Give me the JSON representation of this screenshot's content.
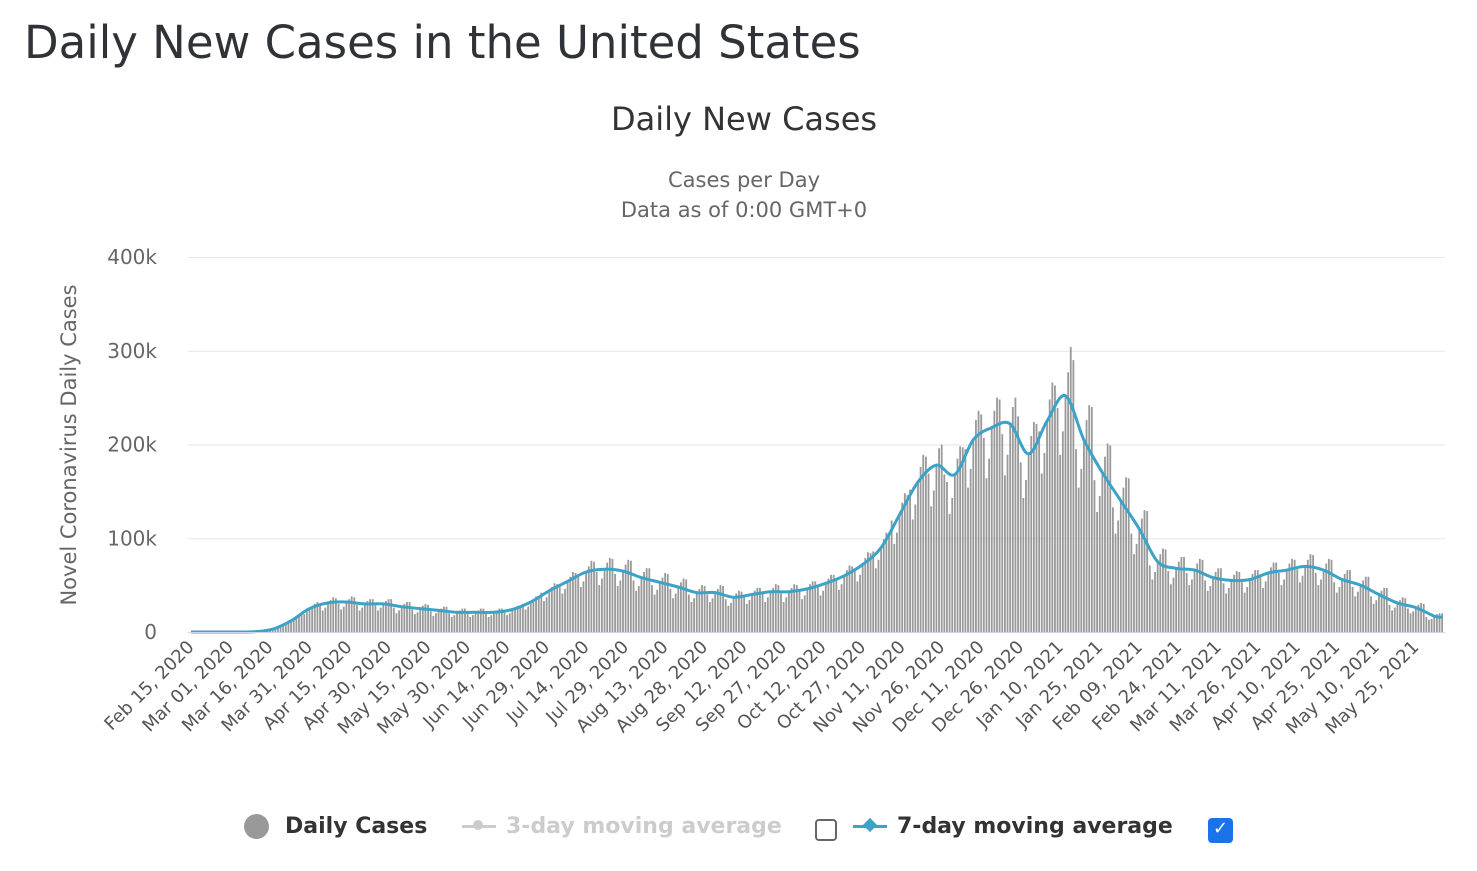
{
  "page_title": "Daily New Cases in the United States",
  "chart_data": {
    "type": "bar",
    "title": "Daily New Cases",
    "subtitle": [
      "Cases per Day",
      "Data as of 0:00 GMT+0"
    ],
    "ylabel": "Novel Coronavirus Daily Cases",
    "xlabel": "",
    "ylim": [
      0,
      400000
    ],
    "y_ticks": [
      {
        "value": 0,
        "label": "0"
      },
      {
        "value": 100000,
        "label": "100k"
      },
      {
        "value": 200000,
        "label": "200k"
      },
      {
        "value": 300000,
        "label": "300k"
      },
      {
        "value": 400000,
        "label": "400k"
      }
    ],
    "grid": true,
    "legend_placement": "bottom",
    "x_range": [
      "2020-02-15",
      "2021-06-04"
    ],
    "x_tick_labels": [
      "Feb 15, 2020",
      "Mar 01, 2020",
      "Mar 16, 2020",
      "Mar 31, 2020",
      "Apr 15, 2020",
      "Apr 30, 2020",
      "May 15, 2020",
      "May 30, 2020",
      "Jun 14, 2020",
      "Jun 29, 2020",
      "Jul 14, 2020",
      "Jul 29, 2020",
      "Aug 13, 2020",
      "Aug 28, 2020",
      "Sep 12, 2020",
      "Sep 27, 2020",
      "Oct 12, 2020",
      "Oct 27, 2020",
      "Nov 11, 2020",
      "Nov 26, 2020",
      "Dec 11, 2020",
      "Dec 26, 2020",
      "Jan 10, 2021",
      "Jan 25, 2021",
      "Feb 09, 2021",
      "Feb 24, 2021",
      "Mar 11, 2021",
      "Mar 26, 2021",
      "Apr 10, 2021",
      "Apr 25, 2021",
      "May 10, 2021",
      "May 25, 2021"
    ],
    "series": [
      {
        "name": "Daily Cases",
        "type": "bar",
        "color": "#999999",
        "visible": true,
        "start_date": "2020-02-15",
        "values": [
          0,
          0,
          0,
          0,
          0,
          0,
          0,
          0,
          0,
          0,
          0,
          0,
          0,
          0,
          0,
          0,
          0,
          0,
          0,
          0,
          0,
          200,
          200,
          300,
          300,
          400,
          400,
          500,
          1000,
          1500,
          2000,
          2500,
          3500,
          4500,
          5500,
          7000,
          8000,
          9500,
          11000,
          13000,
          17000,
          19000,
          20000,
          19000,
          22000,
          25000,
          27000,
          30000,
          32000,
          29000,
          23000,
          26000,
          31000,
          34000,
          37000,
          36000,
          30000,
          24000,
          27000,
          32000,
          35000,
          38000,
          37000,
          29000,
          23000,
          26000,
          30000,
          33000,
          35000,
          35000,
          29000,
          23000,
          26000,
          30000,
          33000,
          35000,
          35000,
          26000,
          20000,
          23000,
          27000,
          30000,
          32000,
          32000,
          24000,
          19000,
          21000,
          25000,
          28000,
          30000,
          29000,
          22000,
          17000,
          20000,
          23000,
          25000,
          27000,
          27000,
          20000,
          16000,
          18000,
          21000,
          23000,
          25000,
          25000,
          20000,
          16000,
          18000,
          21000,
          23000,
          25000,
          25000,
          20000,
          16000,
          18000,
          21000,
          23000,
          25000,
          25000,
          23000,
          18000,
          20000,
          24000,
          26000,
          28000,
          28000,
          30000,
          24000,
          27000,
          32000,
          35000,
          38000,
          37000,
          42000,
          33000,
          37000,
          44000,
          48000,
          52000,
          51000,
          51000,
          41000,
          46000,
          54000,
          59000,
          64000,
          63000,
          61000,
          48000,
          54000,
          64000,
          70000,
          76000,
          75000,
          64000,
          50000,
          57000,
          67000,
          74000,
          79000,
          78000,
          62000,
          49000,
          55000,
          65000,
          72000,
          77000,
          76000,
          55000,
          44000,
          49000,
          58000,
          64000,
          68000,
          68000,
          50000,
          40000,
          45000,
          53000,
          58000,
          63000,
          62000,
          46000,
          36000,
          41000,
          48000,
          53000,
          57000,
          56000,
          40000,
          32000,
          36000,
          42000,
          46000,
          50000,
          49000,
          40000,
          32000,
          36000,
          42000,
          46000,
          50000,
          49000,
          35000,
          28000,
          31000,
          37000,
          41000,
          44000,
          43000,
          38000,
          30000,
          34000,
          40000,
          44000,
          47000,
          47000,
          41000,
          32000,
          37000,
          43000,
          47000,
          51000,
          50000,
          41000,
          32000,
          37000,
          43000,
          47000,
          51000,
          50000,
          44000,
          35000,
          39000,
          46000,
          51000,
          54000,
          54000,
          49000,
          39000,
          44000,
          52000,
          57000,
          61000,
          61000,
          57000,
          45000,
          51000,
          60000,
          66000,
          71000,
          70000,
          68000,
          54000,
          61000,
          72000,
          79000,
          85000,
          84000,
          86000,
          68000,
          77000,
          90000,
          99000,
          106000,
          105000,
          119000,
          94000,
          106000,
          125000,
          138000,
          148000,
          146000,
          152000,
          120000,
          136000,
          160000,
          176000,
          189000,
          187000,
          169000,
          134000,
          151000,
          178000,
          196000,
          200000,
          168000,
          160000,
          126000,
          143000,
          168000,
          185000,
          198000,
          197000,
          195000,
          154000,
          174000,
          205000,
          226000,
          236000,
          232000,
          207000,
          164000,
          185000,
          218000,
          236000,
          250000,
          248000,
          211000,
          167000,
          189000,
          222000,
          240000,
          250000,
          230000,
          181000,
          143000,
          162000,
          190000,
          209000,
          224000,
          222000,
          214000,
          169000,
          191000,
          225000,
          248000,
          266000,
          263000,
          239000,
          189000,
          214000,
          252000,
          277000,
          304000,
          290000,
          195000,
          154000,
          174000,
          205000,
          226000,
          242000,
          240000,
          162000,
          128000,
          145000,
          170000,
          187000,
          201000,
          199000,
          133000,
          105000,
          119000,
          140000,
          154000,
          165000,
          164000,
          105000,
          83000,
          94000,
          110000,
          121000,
          130000,
          129000,
          71000,
          56000,
          64000,
          75000,
          83000,
          89000,
          88000,
          65000,
          51000,
          58000,
          68000,
          75000,
          80000,
          80000,
          63000,
          50000,
          56000,
          66000,
          73000,
          78000,
          77000,
          55000,
          44000,
          49000,
          58000,
          64000,
          68000,
          68000,
          52000,
          41000,
          47000,
          55000,
          61000,
          65000,
          64000,
          53000,
          42000,
          48000,
          56000,
          62000,
          66000,
          66000,
          60000,
          47000,
          54000,
          63000,
          69000,
          74000,
          74000,
          63000,
          50000,
          56000,
          66000,
          73000,
          78000,
          77000,
          67000,
          53000,
          60000,
          70000,
          77000,
          83000,
          82000,
          63000,
          50000,
          56000,
          66000,
          73000,
          78000,
          77000,
          53000,
          42000,
          48000,
          56000,
          62000,
          66000,
          66000,
          48000,
          38000,
          43000,
          50000,
          55000,
          59000,
          59000,
          38000,
          30000,
          34000,
          40000,
          44000,
          47000,
          47000,
          29000,
          23000,
          26000,
          31000,
          34000,
          37000,
          36000,
          25000,
          20000,
          22000,
          26000,
          29000,
          31000,
          30000,
          16000,
          13000,
          14000,
          17000,
          19000,
          20000,
          20000
        ]
      },
      {
        "name": "3-day moving average",
        "type": "line",
        "color": "#cccccc",
        "visible": false
      },
      {
        "name": "7-day moving average",
        "type": "line",
        "color": "#3ba3c7",
        "visible": true,
        "dates": [
          "2020-02-18",
          "2020-02-25",
          "2020-03-03",
          "2020-03-10",
          "2020-03-17",
          "2020-03-24",
          "2020-03-31",
          "2020-04-07",
          "2020-04-14",
          "2020-04-21",
          "2020-04-28",
          "2020-05-05",
          "2020-05-12",
          "2020-05-19",
          "2020-05-26",
          "2020-06-02",
          "2020-06-09",
          "2020-06-16",
          "2020-06-23",
          "2020-06-30",
          "2020-07-07",
          "2020-07-14",
          "2020-07-21",
          "2020-07-28",
          "2020-08-04",
          "2020-08-11",
          "2020-08-18",
          "2020-08-25",
          "2020-09-01",
          "2020-09-08",
          "2020-09-15",
          "2020-09-22",
          "2020-09-29",
          "2020-10-06",
          "2020-10-13",
          "2020-10-20",
          "2020-10-27",
          "2020-11-03",
          "2020-11-10",
          "2020-11-17",
          "2020-11-24",
          "2020-12-01",
          "2020-12-08",
          "2020-12-15",
          "2020-12-22",
          "2020-12-29",
          "2021-01-05",
          "2021-01-12",
          "2021-01-19",
          "2021-01-26",
          "2021-02-02",
          "2021-02-09",
          "2021-02-16",
          "2021-02-23",
          "2021-03-02",
          "2021-03-09",
          "2021-03-16",
          "2021-03-23",
          "2021-03-30",
          "2021-04-06",
          "2021-04-13",
          "2021-04-20",
          "2021-04-27",
          "2021-05-04",
          "2021-05-11",
          "2021-05-18",
          "2021-05-25",
          "2021-06-01"
        ],
        "values": [
          0,
          0,
          0,
          300,
          3000,
          12000,
          25000,
          31000,
          32000,
          30000,
          30000,
          27000,
          25000,
          23000,
          21000,
          21000,
          21000,
          24000,
          32000,
          44000,
          54000,
          64000,
          67000,
          65000,
          58000,
          53000,
          48000,
          42000,
          42000,
          37000,
          40000,
          43000,
          43000,
          46000,
          52000,
          60000,
          72000,
          90000,
          125000,
          160000,
          178000,
          168000,
          205000,
          218000,
          222000,
          190000,
          225000,
          252000,
          205000,
          170000,
          140000,
          110000,
          75000,
          68000,
          66000,
          58000,
          55000,
          56000,
          63000,
          66000,
          70000,
          66000,
          56000,
          50000,
          40000,
          31000,
          26000,
          17000
        ]
      }
    ]
  },
  "legend": {
    "items": [
      {
        "label": "Daily Cases",
        "icon": "circle-marker",
        "color": "#999999",
        "enabled": true
      },
      {
        "label": "3-day moving average",
        "icon": "line-diamond-marker",
        "color": "#cccccc",
        "enabled": false,
        "checkbox_checked": false
      },
      {
        "label": "7-day moving average",
        "icon": "line-diamond-marker",
        "color": "#3ba3c7",
        "enabled": true,
        "checkbox_checked": true
      }
    ]
  }
}
